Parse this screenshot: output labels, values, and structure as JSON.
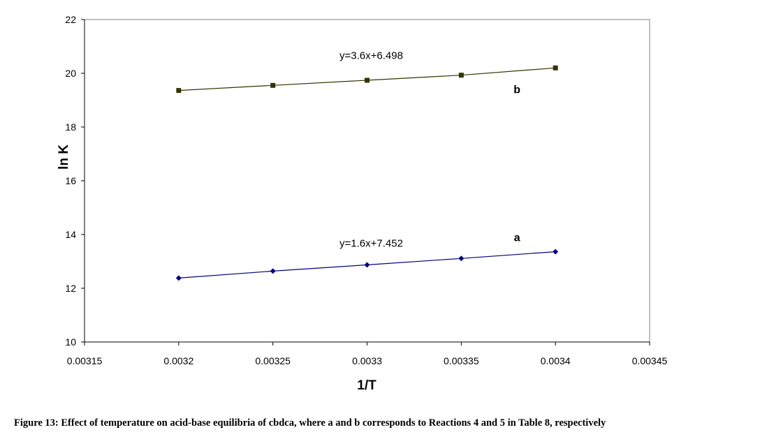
{
  "chart_data": {
    "type": "line",
    "xlabel": "1/T",
    "ylabel": "ln K",
    "xlim": [
      0.00315,
      0.00345
    ],
    "ylim": [
      10,
      22
    ],
    "x_ticks": [
      "0.00315",
      "0.0032",
      "0.00325",
      "0.0033",
      "0.00335",
      "0.0034",
      "0.00345"
    ],
    "y_ticks": [
      "10",
      "12",
      "14",
      "16",
      "18",
      "20",
      "22"
    ],
    "x_tick_values": [
      0.00315,
      0.0032,
      0.00325,
      0.0033,
      0.00335,
      0.0034,
      0.00345
    ],
    "y_tick_values": [
      10,
      12,
      14,
      16,
      18,
      20,
      22
    ],
    "grid": false,
    "x": [
      0.0032,
      0.00325,
      0.0033,
      0.00335,
      0.0034
    ],
    "series": [
      {
        "name": "b",
        "equation": "y=3.6x+6.498",
        "values": [
          19.36,
          19.55,
          19.74,
          19.93,
          20.2
        ],
        "color": "#333300",
        "marker": "square"
      },
      {
        "name": "a",
        "equation": "y=1.6x+7.452",
        "values": [
          12.38,
          12.64,
          12.87,
          13.11,
          13.36
        ],
        "color": "#000080",
        "marker": "diamond"
      }
    ]
  },
  "caption": "Figure 13: Effect of temperature on acid-base equilibria of cbdca, where a and b corresponds to Reactions 4 and 5 in Table 8, respectively"
}
